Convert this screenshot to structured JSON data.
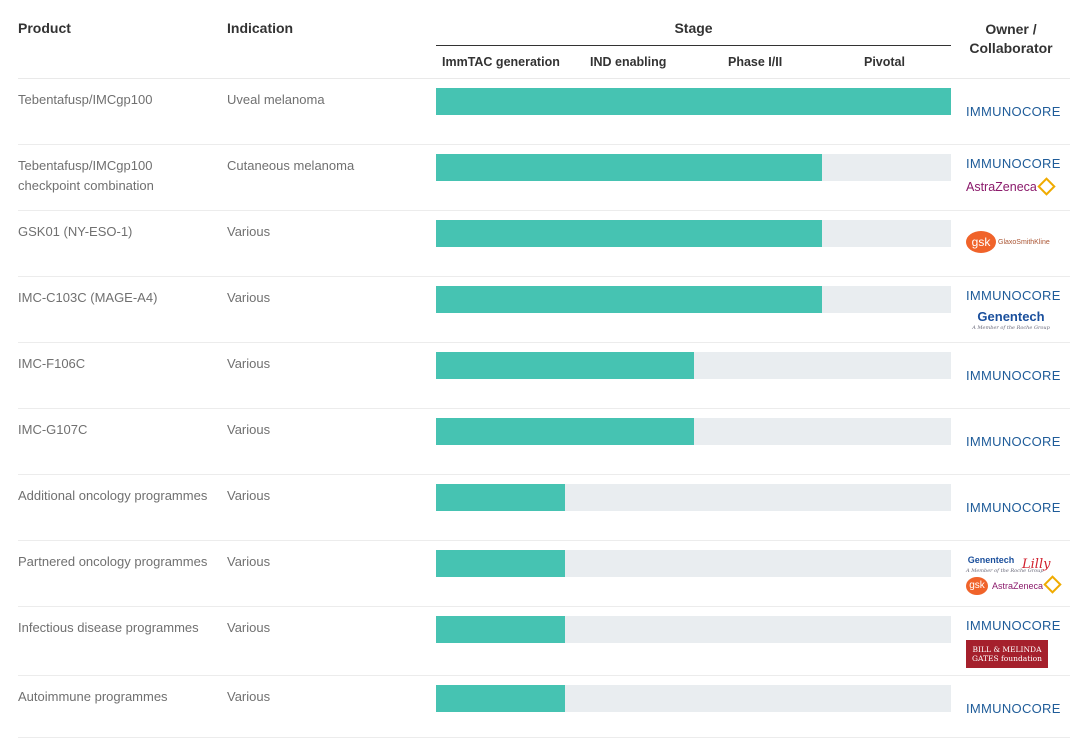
{
  "headers": {
    "product": "Product",
    "indication": "Indication",
    "stage": "Stage",
    "owner": "Owner / Collaborator"
  },
  "brands": {
    "immunocore": "IMMUNOCORE",
    "astrazeneca": "AstraZeneca",
    "gsk": "gsk",
    "glaxosmithkline": "GlaxoSmithKline",
    "genentech": "Genentech",
    "genentech_tagline": "A Member of the Roche Group",
    "lilly": "Lilly",
    "gates_line1": "BILL & MELINDA",
    "gates_line2": "GATES foundation"
  },
  "colors": {
    "bar_fill": "#46c3b2",
    "bar_track": "#e9edf0"
  },
  "chart_data": {
    "type": "bar",
    "orientation": "horizontal",
    "x_categories": [
      "ImmTAC generation",
      "IND enabling",
      "Phase I/II",
      "Pivotal"
    ],
    "xlim": [
      0,
      4
    ],
    "grid": false,
    "legend": "none",
    "rows": [
      {
        "product": "Tebentafusp/IMCgp100",
        "indication": "Uveal melanoma",
        "stage_progress": 4,
        "owners": [
          "immunocore"
        ]
      },
      {
        "product": "Tebentafusp/IMCgp100 checkpoint combination",
        "indication": "Cutaneous melanoma",
        "stage_progress": 3,
        "owners": [
          "immunocore",
          "astrazeneca"
        ]
      },
      {
        "product": "GSK01 (NY-ESO-1)",
        "indication": "Various",
        "stage_progress": 3,
        "owners": [
          "gsk"
        ]
      },
      {
        "product": "IMC-C103C (MAGE-A4)",
        "indication": "Various",
        "stage_progress": 3,
        "owners": [
          "immunocore",
          "genentech"
        ]
      },
      {
        "product": "IMC-F106C",
        "indication": "Various",
        "stage_progress": 2,
        "owners": [
          "immunocore"
        ]
      },
      {
        "product": "IMC-G107C",
        "indication": "Various",
        "stage_progress": 2,
        "owners": [
          "immunocore"
        ]
      },
      {
        "product": "Additional oncology programmes",
        "indication": "Various",
        "stage_progress": 1,
        "owners": [
          "immunocore"
        ]
      },
      {
        "product": "Partnered oncology programmes",
        "indication": "Various",
        "stage_progress": 1,
        "owners": [
          "genentech",
          "lilly",
          "gsk",
          "astrazeneca"
        ]
      },
      {
        "product": "Infectious disease programmes",
        "indication": "Various",
        "stage_progress": 1,
        "owners": [
          "immunocore",
          "gates"
        ]
      },
      {
        "product": "Autoimmune programmes",
        "indication": "Various",
        "stage_progress": 1,
        "owners": [
          "immunocore"
        ]
      }
    ]
  }
}
